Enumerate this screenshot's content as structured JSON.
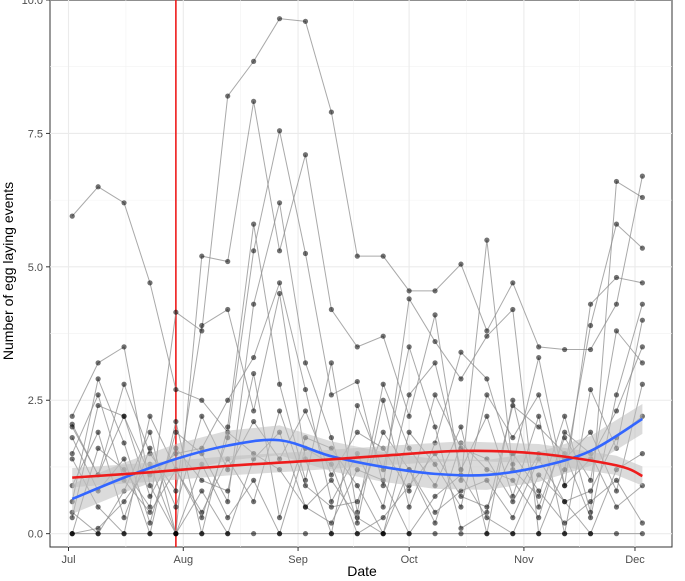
{
  "chart_data": {
    "type": "line",
    "xlabel": "Date",
    "ylabel": "Number of egg laying events",
    "x_tick_labels": [
      "Jul",
      "Aug",
      "Sep",
      "Oct",
      "Nov",
      "Dec"
    ],
    "x_ticks": [
      "2021-07-01",
      "2021-08-01",
      "2021-09-01",
      "2021-10-01",
      "2021-11-01",
      "2021-12-01"
    ],
    "xlim": [
      "2021-06-26",
      "2021-12-11"
    ],
    "y_tick_labels": [
      "0.0",
      "2.5",
      "5.0",
      "7.5",
      "10.0"
    ],
    "y_ticks": [
      0,
      2.5,
      5,
      7.5,
      10
    ],
    "ylim": [
      -0.25,
      10
    ],
    "grid": true,
    "vline": {
      "x": "2021-07-30",
      "color": "#ee1c1c"
    },
    "colors": {
      "points": "#000000",
      "lines": "#8c8c8c",
      "blue_smooth": "#3366ff",
      "red_smooth": "#ee1c1c",
      "ribbon": "#bdbdbd"
    },
    "sample_dates": [
      "2021-07-02",
      "2021-07-09",
      "2021-07-16",
      "2021-07-23",
      "2021-07-30",
      "2021-08-06",
      "2021-08-13",
      "2021-08-20",
      "2021-08-27",
      "2021-09-03",
      "2021-09-10",
      "2021-09-17",
      "2021-09-24",
      "2021-10-01",
      "2021-10-08",
      "2021-10-15",
      "2021-10-22",
      "2021-10-29",
      "2021-11-05",
      "2021-11-12",
      "2021-11-19",
      "2021-11-26",
      "2021-12-03"
    ],
    "series": [
      {
        "values": [
          5.95,
          6.5,
          6.2,
          4.7,
          2.7,
          2.5,
          1.9,
          1.5,
          1.2,
          0.5,
          1.0,
          0.3,
          0.0,
          1.2,
          0.4,
          0.8,
          1.0,
          0.3,
          1.4,
          0.6,
          0.8,
          1.8,
          2.2
        ]
      },
      {
        "values": [
          0.0,
          1.6,
          1.2,
          0.5,
          4.15,
          3.8,
          8.2,
          8.85,
          9.65,
          9.6,
          7.9,
          5.2,
          5.2,
          4.55,
          4.55,
          5.05,
          3.8,
          4.7,
          3.5,
          3.45,
          3.45,
          4.3,
          6.7
        ]
      },
      {
        "values": [
          2.2,
          3.2,
          3.5,
          0.9,
          0.0,
          5.2,
          5.1,
          8.1,
          5.3,
          7.1,
          4.2,
          3.5,
          3.7,
          2.2,
          4.1,
          1.0,
          5.5,
          1.2,
          0.7,
          2.2,
          0.4,
          6.6,
          6.3
        ]
      },
      {
        "values": [
          1.4,
          0.5,
          0.0,
          2.2,
          1.2,
          0.3,
          1.8,
          5.3,
          7.55,
          5.25,
          2.6,
          2.85,
          0.9,
          4.4,
          3.6,
          2.9,
          3.7,
          4.2,
          0.0,
          1.2,
          3.9,
          5.8,
          5.35
        ]
      },
      {
        "values": [
          0.6,
          2.9,
          1.7,
          0.2,
          1.9,
          1.5,
          0.6,
          4.3,
          6.2,
          3.2,
          1.8,
          0.2,
          2.5,
          0.5,
          1.7,
          3.4,
          2.9,
          1.3,
          3.3,
          0.9,
          4.3,
          4.8,
          4.7
        ]
      },
      {
        "values": [
          2.0,
          1.1,
          2.8,
          1.5,
          0.8,
          3.9,
          4.2,
          2.3,
          4.5,
          1.4,
          0.0,
          2.4,
          1.2,
          3.5,
          2.0,
          0.1,
          0.4,
          2.4,
          2.0,
          1.5,
          0.3,
          2.6,
          4.3
        ]
      },
      {
        "values": [
          0.3,
          2.4,
          2.2,
          1.1,
          1.5,
          1.6,
          2.5,
          3.3,
          4.7,
          2.7,
          0.6,
          1.5,
          0.5,
          2.6,
          3.2,
          1.2,
          2.2,
          0.7,
          2.2,
          0.0,
          2.7,
          1.6,
          4.0
        ]
      },
      {
        "values": [
          1.8,
          0.8,
          1.4,
          0.0,
          2.1,
          0.0,
          2.0,
          5.8,
          2.8,
          1.0,
          3.2,
          0.4,
          2.8,
          1.6,
          0.9,
          2.0,
          0.0,
          2.5,
          0.5,
          1.8,
          1.0,
          3.8,
          3.2
        ]
      },
      {
        "values": [
          0.9,
          1.9,
          0.3,
          1.6,
          0.5,
          2.2,
          1.2,
          2.1,
          1.4,
          2.3,
          1.1,
          1.9,
          1.6,
          0.8,
          2.6,
          1.6,
          1.4,
          0.6,
          1.5,
          1.4,
          1.9,
          0.8,
          2.8
        ]
      },
      {
        "values": [
          2.05,
          1.1,
          2.2,
          0.7,
          1.6,
          1.0,
          0.8,
          3.0,
          0.3,
          1.8,
          1.6,
          0.9,
          0.0,
          1.9,
          1.3,
          0.5,
          2.6,
          1.8,
          2.6,
          0.9,
          1.4,
          2.3,
          3.5
        ]
      },
      {
        "values": [
          0.0,
          0.1,
          0.6,
          1.3,
          0.0,
          0.8,
          0.0,
          1.4,
          1.9,
          0.5,
          0.2,
          1.2,
          1.0,
          0.0,
          0.7,
          1.1,
          0.3,
          0.0,
          1.1,
          0.6,
          0.0,
          1.2,
          1.5
        ]
      },
      {
        "values": [
          1.5,
          2.6,
          1.0,
          0.4,
          1.2,
          0.4,
          1.4,
          0.6,
          2.3,
          0.9,
          0.5,
          0.6,
          1.9,
          1.2,
          0.2,
          1.7,
          1.2,
          1.0,
          0.3,
          1.9,
          1.5,
          0.5,
          0.9
        ]
      },
      {
        "values": [
          0.4,
          0.0,
          0.8,
          1.9,
          0.0,
          1.3,
          0.3,
          1.0,
          0.0,
          1.6,
          1.3,
          0.0,
          0.3,
          0.9,
          1.5,
          0.7,
          0.5,
          1.5,
          0.8,
          0.2,
          0.6,
          1.0,
          0.2
        ]
      },
      {
        "values": [
          0.0,
          0.0,
          0.0,
          0.0,
          0.0,
          0.0,
          0.0,
          0.0,
          0.0,
          0.0,
          0.0,
          0.0,
          0.0,
          0.0,
          0.0,
          0.0,
          0.0,
          0.0,
          0.0,
          0.0,
          0.0,
          0.0,
          0.0
        ]
      }
    ],
    "smooth_blue": {
      "x": [
        "2021-07-02",
        "2021-07-16",
        "2021-07-30",
        "2021-08-13",
        "2021-08-27",
        "2021-09-10",
        "2021-09-24",
        "2021-10-08",
        "2021-10-22",
        "2021-11-05",
        "2021-11-19",
        "2021-12-03"
      ],
      "values": [
        0.65,
        1.05,
        1.4,
        1.65,
        1.75,
        1.45,
        1.25,
        1.12,
        1.1,
        1.25,
        1.55,
        2.15
      ]
    },
    "smooth_red": {
      "x": [
        "2021-07-02",
        "2021-07-23",
        "2021-08-13",
        "2021-09-03",
        "2021-09-24",
        "2021-10-15",
        "2021-11-05",
        "2021-11-26",
        "2021-12-03"
      ],
      "values": [
        1.05,
        1.15,
        1.27,
        1.36,
        1.46,
        1.55,
        1.5,
        1.28,
        1.08
      ]
    }
  }
}
